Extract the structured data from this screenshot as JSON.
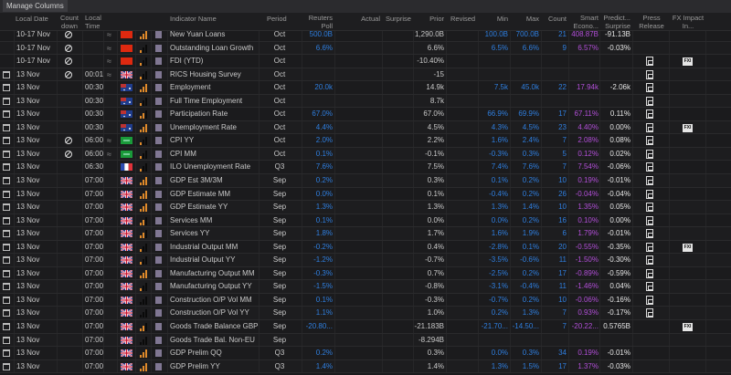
{
  "toolbar": {
    "manage_columns": "Manage Columns"
  },
  "headers": {
    "local_date": "Local Date",
    "countdown": "Count down",
    "local_time": "Local Time",
    "indicator": "Indicator Name",
    "period": "Period",
    "poll": "Reuters Poll",
    "actual": "Actual",
    "surprise": "Surprise",
    "prior": "Prior",
    "revised": "Revised",
    "min": "Min",
    "max": "Max",
    "count": "Count",
    "smart": "Smart Econo...",
    "predicted": "Predict... Surprise",
    "press": "Press Release",
    "fx": "FX Impact In..."
  },
  "colors": {
    "blue": "#2f7fe0",
    "purple": "#b24fd8",
    "importance": "#e08a2a"
  },
  "rows": [
    {
      "cal": false,
      "date": "10-17 Nov",
      "cd": true,
      "time": "",
      "approx": true,
      "flag": "CN",
      "imp": 3,
      "name": "New Yuan Loans",
      "period": "Oct",
      "poll": "500.0B",
      "prior": "1,290.0B",
      "min": "100.0B",
      "max": "700.0B",
      "count": "21",
      "smart": "408.87B",
      "pred": "-91.13B",
      "press": false,
      "fx": false
    },
    {
      "cal": false,
      "date": "10-17 Nov",
      "cd": true,
      "time": "",
      "approx": true,
      "flag": "CN",
      "imp": 1,
      "name": "Outstanding Loan Growth",
      "period": "Oct",
      "poll": "6.6%",
      "prior": "6.6%",
      "min": "6.5%",
      "max": "6.6%",
      "count": "9",
      "smart": "6.57%",
      "pred": "-0.03%",
      "press": false,
      "fx": false
    },
    {
      "cal": false,
      "date": "10-17 Nov",
      "cd": true,
      "time": "",
      "approx": true,
      "flag": "CN",
      "imp": 1,
      "name": "FDI (YTD)",
      "period": "Oct",
      "poll": "",
      "prior": "-10.40%",
      "min": "",
      "max": "",
      "count": "",
      "smart": "",
      "pred": "",
      "press": true,
      "fx": true
    },
    {
      "cal": true,
      "date": "13 Nov",
      "cd": true,
      "time": "00:01",
      "approx": true,
      "flag": "UK",
      "imp": 1,
      "name": "RICS Housing Survey",
      "period": "Oct",
      "poll": "",
      "prior": "-15",
      "min": "",
      "max": "",
      "count": "",
      "smart": "",
      "pred": "",
      "press": true,
      "fx": false
    },
    {
      "cal": true,
      "date": "13 Nov",
      "cd": false,
      "time": "00:30",
      "approx": false,
      "flag": "AU",
      "imp": 3,
      "name": "Employment",
      "period": "Oct",
      "poll": "20.0k",
      "prior": "14.9k",
      "min": "7.5k",
      "max": "45.0k",
      "count": "22",
      "smart": "17.94k",
      "pred": "-2.06k",
      "press": true,
      "fx": false
    },
    {
      "cal": true,
      "date": "13 Nov",
      "cd": false,
      "time": "00:30",
      "approx": false,
      "flag": "AU",
      "imp": 1,
      "name": "Full Time Employment",
      "period": "Oct",
      "poll": "",
      "prior": "8.7k",
      "min": "",
      "max": "",
      "count": "",
      "smart": "",
      "pred": "",
      "press": true,
      "fx": false
    },
    {
      "cal": true,
      "date": "13 Nov",
      "cd": false,
      "time": "00:30",
      "approx": false,
      "flag": "AU",
      "imp": 2,
      "name": "Participation Rate",
      "period": "Oct",
      "poll": "67.0%",
      "prior": "67.0%",
      "min": "66.9%",
      "max": "69.9%",
      "count": "17",
      "smart": "67.11%",
      "pred": "0.11%",
      "press": true,
      "fx": false
    },
    {
      "cal": true,
      "date": "13 Nov",
      "cd": false,
      "time": "00:30",
      "approx": false,
      "flag": "AU",
      "imp": 3,
      "name": "Unemployment Rate",
      "period": "Oct",
      "poll": "4.4%",
      "prior": "4.5%",
      "min": "4.3%",
      "max": "4.5%",
      "count": "23",
      "smart": "4.40%",
      "pred": "0.00%",
      "press": true,
      "fx": true
    },
    {
      "cal": true,
      "date": "13 Nov",
      "cd": true,
      "time": "06:00",
      "approx": true,
      "flag": "SA",
      "imp": 1,
      "name": "CPI YY",
      "period": "Oct",
      "poll": "2.0%",
      "prior": "2.2%",
      "min": "1.6%",
      "max": "2.4%",
      "count": "7",
      "smart": "2.08%",
      "pred": "0.08%",
      "press": true,
      "fx": false
    },
    {
      "cal": true,
      "date": "13 Nov",
      "cd": true,
      "time": "06:00",
      "approx": true,
      "flag": "SA",
      "imp": 1,
      "name": "CPI MM",
      "period": "Oct",
      "poll": "0.1%",
      "prior": "-0.1%",
      "min": "-0.3%",
      "max": "0.3%",
      "count": "5",
      "smart": "0.12%",
      "pred": "0.02%",
      "press": true,
      "fx": false
    },
    {
      "cal": true,
      "date": "13 Nov",
      "cd": false,
      "time": "06:30",
      "approx": false,
      "flag": "FR",
      "imp": 1,
      "name": "ILO Unemployment Rate",
      "period": "Q3",
      "poll": "7.6%",
      "prior": "7.5%",
      "min": "7.4%",
      "max": "7.6%",
      "count": "7",
      "smart": "7.54%",
      "pred": "-0.06%",
      "press": true,
      "fx": false
    },
    {
      "cal": true,
      "date": "13 Nov",
      "cd": false,
      "time": "07:00",
      "approx": false,
      "flag": "UK",
      "imp": 3,
      "name": "GDP Est 3M/3M",
      "period": "Sep",
      "poll": "0.2%",
      "prior": "0.3%",
      "min": "0.1%",
      "max": "0.2%",
      "count": "10",
      "smart": "0.19%",
      "pred": "-0.01%",
      "press": true,
      "fx": false
    },
    {
      "cal": true,
      "date": "13 Nov",
      "cd": false,
      "time": "07:00",
      "approx": false,
      "flag": "UK",
      "imp": 3,
      "name": "GDP Estimate MM",
      "period": "Sep",
      "poll": "0.0%",
      "prior": "0.1%",
      "min": "-0.4%",
      "max": "0.2%",
      "count": "26",
      "smart": "-0.04%",
      "pred": "-0.04%",
      "press": true,
      "fx": false
    },
    {
      "cal": true,
      "date": "13 Nov",
      "cd": false,
      "time": "07:00",
      "approx": false,
      "flag": "UK",
      "imp": 3,
      "name": "GDP Estimate YY",
      "period": "Sep",
      "poll": "1.3%",
      "prior": "1.3%",
      "min": "1.3%",
      "max": "1.4%",
      "count": "10",
      "smart": "1.35%",
      "pred": "0.05%",
      "press": true,
      "fx": false
    },
    {
      "cal": true,
      "date": "13 Nov",
      "cd": false,
      "time": "07:00",
      "approx": false,
      "flag": "UK",
      "imp": 2,
      "name": "Services MM",
      "period": "Sep",
      "poll": "0.1%",
      "prior": "0.0%",
      "min": "0.0%",
      "max": "0.2%",
      "count": "16",
      "smart": "0.10%",
      "pred": "0.00%",
      "press": true,
      "fx": false
    },
    {
      "cal": true,
      "date": "13 Nov",
      "cd": false,
      "time": "07:00",
      "approx": false,
      "flag": "UK",
      "imp": 2,
      "name": "Services YY",
      "period": "Sep",
      "poll": "1.8%",
      "prior": "1.7%",
      "min": "1.6%",
      "max": "1.9%",
      "count": "6",
      "smart": "1.79%",
      "pred": "-0.01%",
      "press": true,
      "fx": false
    },
    {
      "cal": true,
      "date": "13 Nov",
      "cd": false,
      "time": "07:00",
      "approx": false,
      "flag": "UK",
      "imp": 1,
      "name": "Industrial Output MM",
      "period": "Sep",
      "poll": "-0.2%",
      "prior": "0.4%",
      "min": "-2.8%",
      "max": "0.1%",
      "count": "20",
      "smart": "-0.55%",
      "pred": "-0.35%",
      "press": true,
      "fx": true
    },
    {
      "cal": true,
      "date": "13 Nov",
      "cd": false,
      "time": "07:00",
      "approx": false,
      "flag": "UK",
      "imp": 1,
      "name": "Industrial Output YY",
      "period": "Sep",
      "poll": "-1.2%",
      "prior": "-0.7%",
      "min": "-3.5%",
      "max": "-0.6%",
      "count": "11",
      "smart": "-1.50%",
      "pred": "-0.30%",
      "press": true,
      "fx": false
    },
    {
      "cal": true,
      "date": "13 Nov",
      "cd": false,
      "time": "07:00",
      "approx": false,
      "flag": "UK",
      "imp": 3,
      "name": "Manufacturing Output MM",
      "period": "Sep",
      "poll": "-0.3%",
      "prior": "0.7%",
      "min": "-2.5%",
      "max": "0.2%",
      "count": "17",
      "smart": "-0.89%",
      "pred": "-0.59%",
      "press": true,
      "fx": false
    },
    {
      "cal": true,
      "date": "13 Nov",
      "cd": false,
      "time": "07:00",
      "approx": false,
      "flag": "UK",
      "imp": 1,
      "name": "Manufacturing Output YY",
      "period": "Sep",
      "poll": "-1.5%",
      "prior": "-0.8%",
      "min": "-3.1%",
      "max": "-0.4%",
      "count": "11",
      "smart": "-1.46%",
      "pred": "0.04%",
      "press": true,
      "fx": false
    },
    {
      "cal": true,
      "date": "13 Nov",
      "cd": false,
      "time": "07:00",
      "approx": false,
      "flag": "UK",
      "imp": 0,
      "name": "Construction O/P Vol MM",
      "period": "Sep",
      "poll": "0.1%",
      "prior": "-0.3%",
      "min": "-0.7%",
      "max": "0.2%",
      "count": "10",
      "smart": "-0.06%",
      "pred": "-0.16%",
      "press": true,
      "fx": false
    },
    {
      "cal": true,
      "date": "13 Nov",
      "cd": false,
      "time": "07:00",
      "approx": false,
      "flag": "UK",
      "imp": 0,
      "name": "Construction O/P Vol YY",
      "period": "Sep",
      "poll": "1.1%",
      "prior": "1.0%",
      "min": "0.2%",
      "max": "1.3%",
      "count": "7",
      "smart": "0.93%",
      "pred": "-0.17%",
      "press": true,
      "fx": false
    },
    {
      "cal": true,
      "date": "13 Nov",
      "cd": false,
      "time": "07:00",
      "approx": false,
      "flag": "UK",
      "imp": 2,
      "name": "Goods Trade Balance GBP",
      "period": "Sep",
      "poll": "-20.80...",
      "prior": "-21.183B",
      "min": "-21.70...",
      "max": "-14.50...",
      "count": "7",
      "smart": "-20.22...",
      "pred": "0.5765B",
      "press": false,
      "fx": true
    },
    {
      "cal": true,
      "date": "13 Nov",
      "cd": false,
      "time": "07:00",
      "approx": false,
      "flag": "UK",
      "imp": 0,
      "name": "Goods Trade Bal. Non-EU",
      "period": "Sep",
      "poll": "",
      "prior": "-8.294B",
      "min": "",
      "max": "",
      "count": "",
      "smart": "",
      "pred": "",
      "press": false,
      "fx": false
    },
    {
      "cal": true,
      "date": "13 Nov",
      "cd": false,
      "time": "07:00",
      "approx": false,
      "flag": "UK",
      "imp": 3,
      "name": "GDP Prelim QQ",
      "period": "Q3",
      "poll": "0.2%",
      "prior": "0.3%",
      "min": "0.0%",
      "max": "0.3%",
      "count": "34",
      "smart": "0.19%",
      "pred": "-0.01%",
      "press": false,
      "fx": false
    },
    {
      "cal": true,
      "date": "13 Nov",
      "cd": false,
      "time": "07:00",
      "approx": false,
      "flag": "UK",
      "imp": 3,
      "name": "GDP Prelim YY",
      "period": "Q3",
      "poll": "1.4%",
      "prior": "1.4%",
      "min": "1.3%",
      "max": "1.5%",
      "count": "17",
      "smart": "1.37%",
      "pred": "-0.03%",
      "press": false,
      "fx": false
    }
  ]
}
